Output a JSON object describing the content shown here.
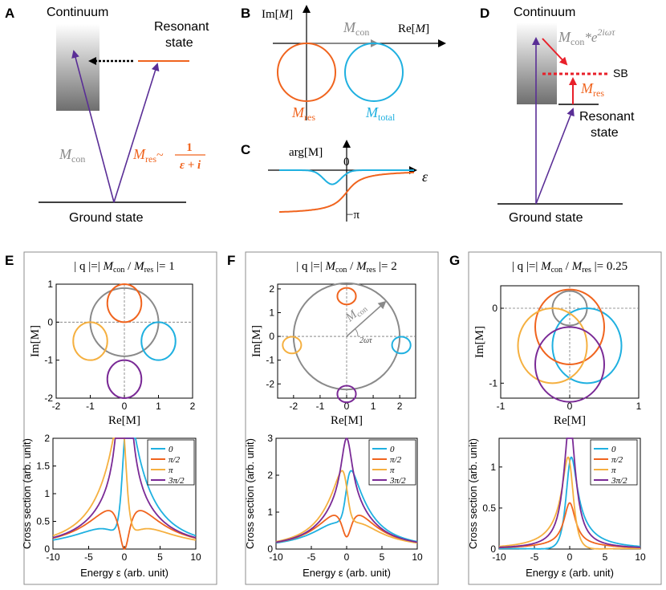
{
  "colors": {
    "blue": "#1fb0e0",
    "orange": "#f0641e",
    "yellow": "#f5b040",
    "purple": "#7a2a96",
    "gray": "#8a8a8a",
    "red": "#e8202a",
    "arrow_purple": "#5a2e96"
  },
  "panelA": {
    "label": "A",
    "continuum": "Continuum",
    "resonant_1": "Resonant",
    "resonant_2": "state",
    "ground": "Ground state",
    "mcon_base": "M",
    "mcon_sub": "con",
    "mres_base": "M",
    "mres_sub": "res",
    "tilde": "~",
    "frac_num": "1",
    "frac_den": "ε + i"
  },
  "panelB": {
    "label": "B",
    "ylabel_pre": "Im[",
    "ylabel_var": "M",
    "ylabel_post": "]",
    "xlabel_pre": "Re[",
    "xlabel_var": "M",
    "xlabel_post": "]",
    "mcon_base": "M",
    "mcon_sub": "con",
    "mres_base": "M",
    "mres_sub": "res",
    "mtot_base": "M",
    "mtot_sub": "total"
  },
  "panelC": {
    "label": "C",
    "ylabel": "arg[M]",
    "zero": "0",
    "minus_pi": "−π",
    "xlabel": "ε"
  },
  "panelD": {
    "label": "D",
    "continuum": "Continuum",
    "sb": "SB",
    "resonant_1": "Resonant",
    "resonant_2": "state",
    "ground": "Ground state",
    "mcon_expr_base": "M",
    "mcon_expr_sub": "con",
    "mcon_expr_star": "*e",
    "mcon_expr_sup": "2iωτ",
    "mres_base": "M",
    "mres_sub": "res"
  },
  "panelE": {
    "label": "E",
    "title": "| q |=| M con / M res |= 1",
    "title_parts": {
      "a": "| q |=| ",
      "m1": "M",
      "s1": "con",
      "b": " / ",
      "m2": "M",
      "s2": "res",
      "c": " |= 1"
    },
    "xlabel": "Re[M]",
    "ylabel": "Im[M]",
    "xticks": [
      "-2",
      "-1",
      "0",
      "1",
      "2"
    ],
    "yticks": [
      "1",
      "0",
      "-1",
      "-2"
    ],
    "lower_xticks": [
      "-10",
      "-5",
      "0",
      "5",
      "10"
    ],
    "lower_yticks": [
      "2",
      "1.5",
      "1",
      "0.5",
      "0"
    ],
    "lower_xlabel": "Energy ε (arb. unit)",
    "lower_ylabel": "Cross section (arb. unit)"
  },
  "panelF": {
    "label": "F",
    "title_parts": {
      "a": "| q |=| ",
      "m1": "M",
      "s1": "con",
      "b": " / ",
      "m2": "M",
      "s2": "res",
      "c": " |= 2"
    },
    "xlabel": "Re[M]",
    "ylabel": "Im[M]",
    "xticks": [
      "-2",
      "-1",
      "0",
      "1",
      "2"
    ],
    "yticks": [
      "2",
      "1",
      "0",
      "-1",
      "-2"
    ],
    "annot_m": "M",
    "annot_sub": "con",
    "annot_angle": "2ωτ",
    "lower_xticks": [
      "-10",
      "-5",
      "0",
      "5",
      "10"
    ],
    "lower_yticks": [
      "3",
      "2",
      "1",
      "0"
    ],
    "lower_xlabel": "Energy ε (arb. unit)",
    "lower_ylabel": "Cross section (arb. unit)"
  },
  "panelG": {
    "label": "G",
    "title_parts": {
      "a": "| q |=| ",
      "m1": "M",
      "s1": "con",
      "b": " / ",
      "m2": "M",
      "s2": "res",
      "c": " |= 0.25"
    },
    "xlabel": "Re[M]",
    "ylabel": "Im[M]",
    "xticks": [
      "-1",
      "0",
      "1"
    ],
    "yticks": [
      "0",
      "-1"
    ],
    "lower_xticks": [
      "-10",
      "-5",
      "0",
      "5",
      "10"
    ],
    "lower_yticks": [
      "1",
      "0.5",
      "0"
    ],
    "lower_xlabel": "Energy ε (arb. unit)",
    "lower_ylabel": "Cross section (arb. unit)"
  },
  "legend": {
    "phases": [
      "0",
      "π/2",
      "π",
      "3π/2"
    ]
  },
  "chart_data": [
    {
      "type": "line",
      "panel": "E",
      "q": 1,
      "xlabel": "Energy ε (arb. unit)",
      "ylabel": "Cross section (arb. unit)",
      "xlim": [
        -10,
        10
      ],
      "ylim": [
        0,
        2
      ],
      "model": "|q·e^{iφ} + 1/(ε+i)|^2",
      "series": [
        {
          "name": "0",
          "phase": 0
        },
        {
          "name": "π/2",
          "phase": 1.5708
        },
        {
          "name": "π",
          "phase": 3.1416
        },
        {
          "name": "3π/2",
          "phase": 4.7124
        }
      ]
    },
    {
      "type": "line",
      "panel": "F",
      "q": 2,
      "xlabel": "Energy ε (arb. unit)",
      "ylabel": "Cross section (arb. unit)",
      "xlim": [
        -10,
        10
      ],
      "ylim": [
        0,
        3
      ],
      "model": "|q·e^{iφ} + 1/(ε+i)|^2, scaled",
      "series": [
        {
          "name": "0",
          "phase": 0
        },
        {
          "name": "π/2",
          "phase": 1.5708
        },
        {
          "name": "π",
          "phase": 3.1416
        },
        {
          "name": "3π/2",
          "phase": 4.7124
        }
      ]
    },
    {
      "type": "line",
      "panel": "G",
      "q": 0.25,
      "xlabel": "Energy ε (arb. unit)",
      "ylabel": "Cross section (arb. unit)",
      "xlim": [
        -10,
        10
      ],
      "ylim": [
        0,
        1.35
      ],
      "model": "|q·e^{iφ} + 1/(ε+i)|^2",
      "series": [
        {
          "name": "0",
          "phase": 0
        },
        {
          "name": "π/2",
          "phase": 1.5708
        },
        {
          "name": "π",
          "phase": 3.1416
        },
        {
          "name": "3π/2",
          "phase": 4.7124
        }
      ]
    }
  ]
}
